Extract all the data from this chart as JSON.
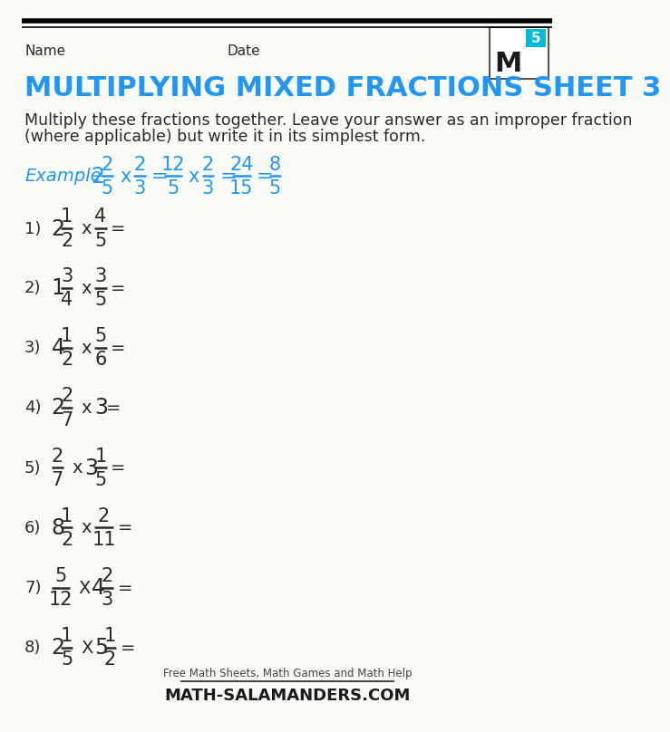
{
  "title": "MULTIPLYING MIXED FRACTIONS SHEET 3",
  "title_color": "#2196F3",
  "header_name": "Name",
  "header_date": "Date",
  "bg_color": "#FAFAF7",
  "text_color": "#2a2a2a",
  "blue_color": "#2196F3",
  "dark_color": "#2a2a2a",
  "problems": [
    {
      "label": "1)",
      "w1": "2",
      "n1": "1",
      "d1": "2",
      "op": "x",
      "w2": "",
      "n2": "4",
      "d2": "5",
      "eq": "="
    },
    {
      "label": "2)",
      "w1": "1",
      "n1": "3",
      "d1": "4",
      "op": "x",
      "w2": "",
      "n2": "3",
      "d2": "5",
      "eq": "="
    },
    {
      "label": "3)",
      "w1": "4",
      "n1": "1",
      "d1": "2",
      "op": "x",
      "w2": "",
      "n2": "5",
      "d2": "6",
      "eq": "="
    },
    {
      "label": "4)",
      "w1": "2",
      "n1": "2",
      "d1": "7",
      "op": "x",
      "w2": "3",
      "n2": "",
      "d2": "",
      "eq": "="
    },
    {
      "label": "5)",
      "w1": "",
      "n1": "2",
      "d1": "7",
      "op": "x",
      "w2": "3",
      "n2": "1",
      "d2": "5",
      "eq": "="
    },
    {
      "label": "6)",
      "w1": "8",
      "n1": "1",
      "d1": "2",
      "op": "x",
      "w2": "",
      "n2": "2",
      "d2": "11",
      "eq": "="
    },
    {
      "label": "7)",
      "w1": "",
      "n1": "5",
      "d1": "12",
      "op": "X",
      "w2": "4",
      "n2": "2",
      "d2": "3",
      "eq": "="
    },
    {
      "label": "8)",
      "w1": "2",
      "n1": "1",
      "d1": "5",
      "op": "X",
      "w2": "5",
      "n2": "1",
      "d2": "2",
      "eq": "="
    }
  ]
}
